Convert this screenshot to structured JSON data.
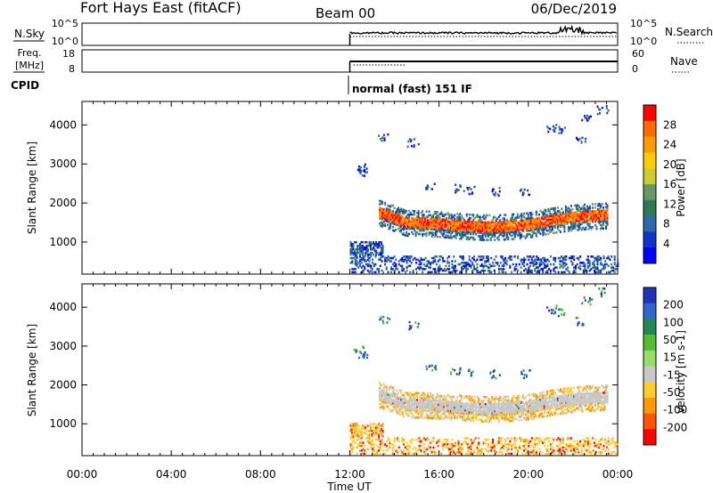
{
  "chart_data": {
    "type": "heatmap",
    "header": {
      "title": "Fort Hays East (fitACF)",
      "beam": "Beam 00",
      "date": "06/Dec/2019"
    },
    "summary_panels": [
      {
        "left_label": "N.Sky",
        "left_ticks": [
          "10^5",
          "10^0"
        ],
        "right_ticks": [
          "10^5",
          "10^0"
        ],
        "right_label": "N.Search"
      },
      {
        "left_label": [
          "Freq.",
          "[MHz]"
        ],
        "left_ticks": [
          "18",
          "8"
        ],
        "right_ticks": [
          "60",
          "0"
        ],
        "right_label": "Nave"
      }
    ],
    "cpid": {
      "label": "CPID",
      "mode_text": "normal (fast) 151 IF",
      "start_time": "12:00"
    },
    "x_axis": {
      "label": "Time UT",
      "ticks": [
        "00:00",
        "04:00",
        "08:00",
        "12:00",
        "16:00",
        "20:00",
        "00:00"
      ],
      "range_hours": [
        0,
        24
      ]
    },
    "y_axis": {
      "label": "Slant Range [km]",
      "ticks": [
        1000,
        2000,
        3000,
        4000
      ],
      "range_km": [
        180,
        4600
      ]
    },
    "panels": [
      {
        "name": "power",
        "colorbar_label": "Power [dB]",
        "colorbar_ticks": [
          "28",
          "24",
          "20",
          "16",
          "12",
          "8",
          "4"
        ],
        "colors": [
          "#ff0000",
          "#ff6a00",
          "#ff9a00",
          "#ffcc00",
          "#cccc33",
          "#669966",
          "#2b7a55",
          "#2b6aa8",
          "#1133cc",
          "#0000ff"
        ]
      },
      {
        "name": "velocity",
        "colorbar_label": "Velocity [m s-1]",
        "colorbar_ticks": [
          "200",
          "100",
          "50",
          "15",
          "-15",
          "-50",
          "-100",
          "-200"
        ],
        "colors": [
          "#2233bb",
          "#3366cc",
          "#228855",
          "#55bb33",
          "#99dd66",
          "#c8c8c8",
          "#ffcc33",
          "#ff9900",
          "#ff5500",
          "#ff0000"
        ]
      }
    ],
    "echo_bands": [
      {
        "feature": "main ionospheric band",
        "t_start": 13.3,
        "t_end": 23.5,
        "range_km": [
          1100,
          1900
        ]
      },
      {
        "feature": "near-range ground clutter",
        "t_start": 12.0,
        "t_end": 24.0,
        "range_km": [
          180,
          700
        ]
      },
      {
        "feature": "near-range patch",
        "t_start": 12.0,
        "t_end": 13.5,
        "range_km": [
          600,
          1000
        ]
      },
      {
        "feature": "scattered far-range echoes",
        "t_start": 13.5,
        "t_end": 23.0,
        "range_km": [
          2200,
          4400
        ]
      }
    ]
  }
}
